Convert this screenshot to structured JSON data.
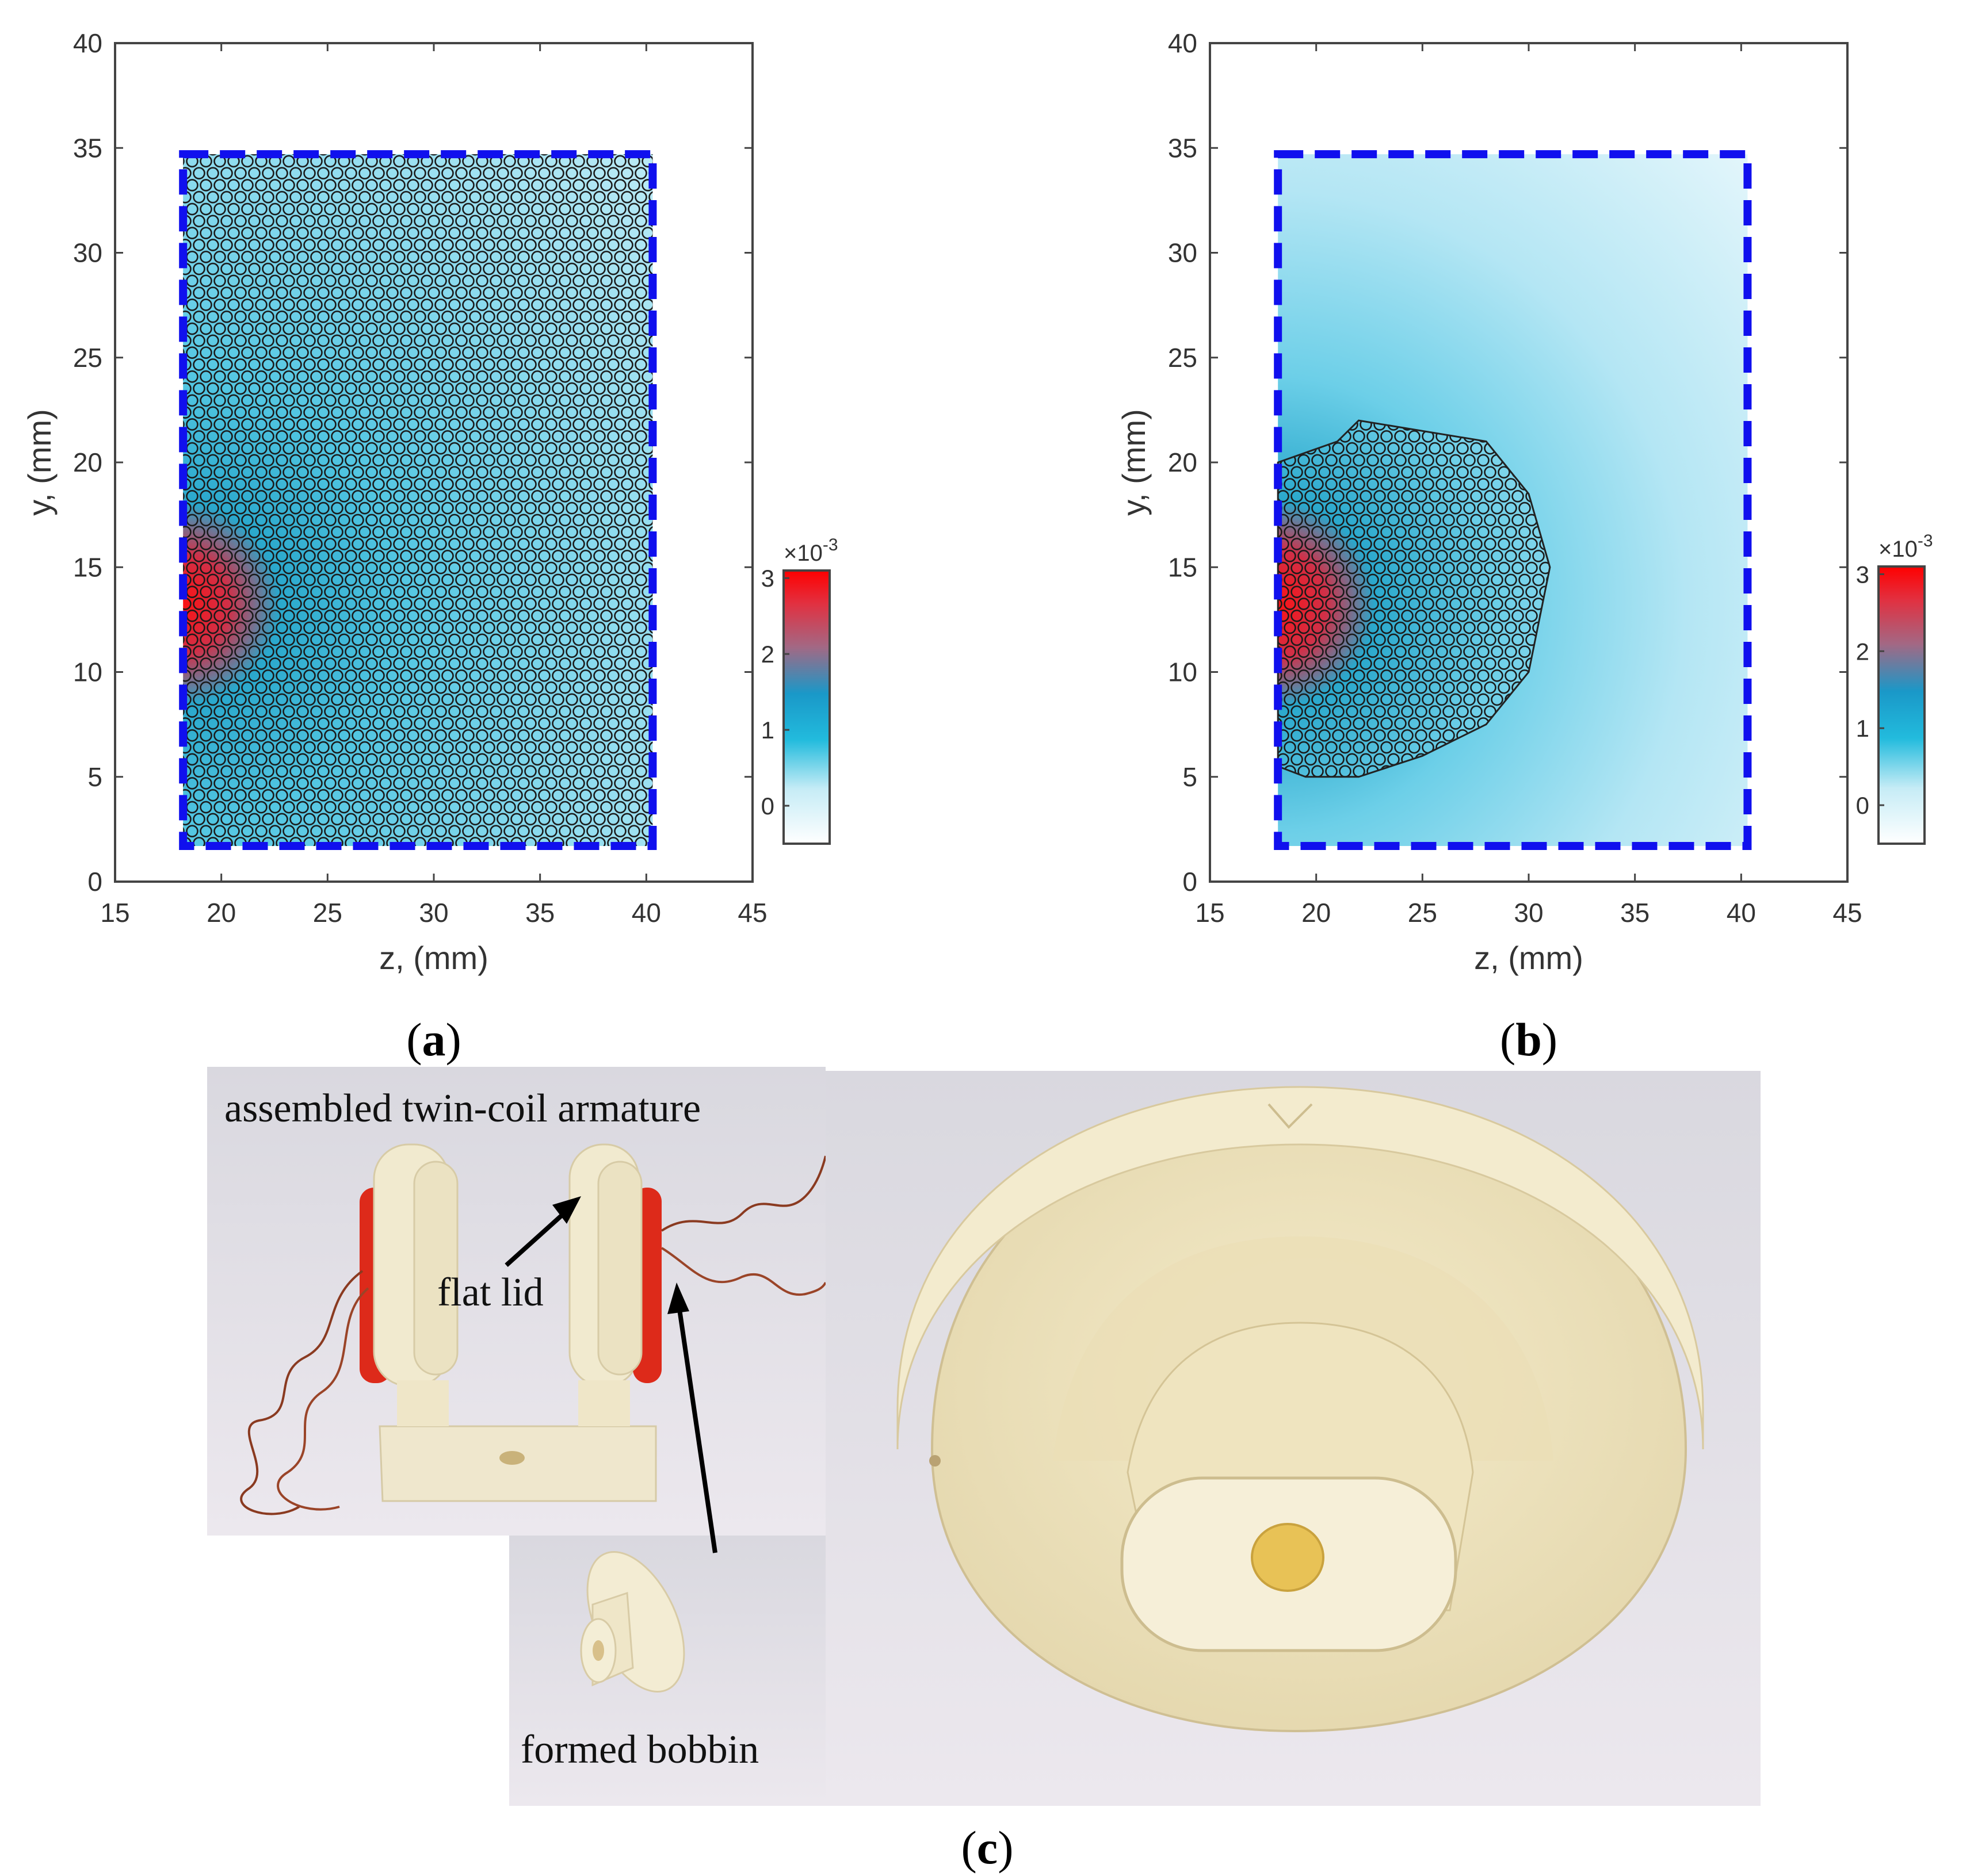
{
  "panels": {
    "a": {
      "caption": "a"
    },
    "b": {
      "caption": "b"
    },
    "c": {
      "caption": "c"
    }
  },
  "chart_data": [
    {
      "type": "scatter",
      "panel": "a",
      "title": "",
      "xlabel": "z, (mm)",
      "ylabel": "y, (mm)",
      "xlim": [
        15,
        45
      ],
      "ylim": [
        0,
        40
      ],
      "xticks": [
        "15",
        "20",
        "25",
        "30",
        "35",
        "40",
        "45"
      ],
      "yticks": [
        "0",
        "5",
        "10",
        "15",
        "20",
        "25",
        "30",
        "35",
        "40"
      ],
      "region_dashed": {
        "z": [
          18.2,
          40.3
        ],
        "y": [
          1.7,
          34.7
        ],
        "color": "#1010ee"
      },
      "markers": "hexagonal lattice of circles filling whole region",
      "marker_extent": {
        "z": [
          18.2,
          40.3
        ],
        "y": [
          1.7,
          34.7
        ]
      },
      "hotspot": {
        "z": 18.2,
        "y": 13.5,
        "description": "peak (red) at z≈18–21 mm, y≈9–18 mm"
      },
      "colorbar": {
        "multiplier": "×10",
        "exponent": "-3",
        "ticks": [
          "0",
          "1",
          "2",
          "3"
        ],
        "range": [
          -0.5,
          3.1
        ],
        "colors": [
          "#ffffff",
          "#22bbdd",
          "#1a98c8",
          "#b0607a",
          "#ff0000"
        ]
      }
    },
    {
      "type": "scatter",
      "panel": "b",
      "title": "",
      "xlabel": "z, (mm)",
      "ylabel": "y, (mm)",
      "xlim": [
        15,
        45
      ],
      "ylim": [
        0,
        40
      ],
      "xticks": [
        "15",
        "20",
        "25",
        "30",
        "35",
        "40",
        "45"
      ],
      "yticks": [
        "0",
        "5",
        "10",
        "15",
        "20",
        "25",
        "30",
        "35",
        "40"
      ],
      "region_dashed": {
        "z": [
          18.2,
          40.3
        ],
        "y": [
          1.7,
          34.7
        ],
        "color": "#1010ee"
      },
      "markers": "hexagonal lattice of circles within optimised region",
      "marker_boundary": [
        [
          18.2,
          5.5
        ],
        [
          19.5,
          5.0
        ],
        [
          22,
          5.0
        ],
        [
          25,
          6.0
        ],
        [
          28,
          7.5
        ],
        [
          30,
          10
        ],
        [
          31,
          15
        ],
        [
          30,
          18.5
        ],
        [
          28,
          21
        ],
        [
          22,
          22
        ],
        [
          21,
          21
        ],
        [
          18.2,
          20
        ]
      ],
      "hotspot": {
        "z": 18.2,
        "y": 13.5,
        "description": "peak (red) at z≈18–21 mm, y≈9–18 mm"
      },
      "colorbar": {
        "multiplier": "×10",
        "exponent": "-3",
        "ticks": [
          "0",
          "1",
          "2",
          "3"
        ],
        "range": [
          -0.5,
          3.1
        ],
        "colors": [
          "#ffffff",
          "#22bbdd",
          "#1a98c8",
          "#b0607a",
          "#ff0000"
        ]
      }
    }
  ],
  "photos": {
    "armature_label": "assembled twin-coil armature",
    "lid_label": "flat lid",
    "bobbin_label": "formed bobbin"
  },
  "colors": {
    "axis": "#444444",
    "dash": "#1010ee",
    "plastic": "#efe6c8",
    "coil": "#dd2a1a"
  }
}
